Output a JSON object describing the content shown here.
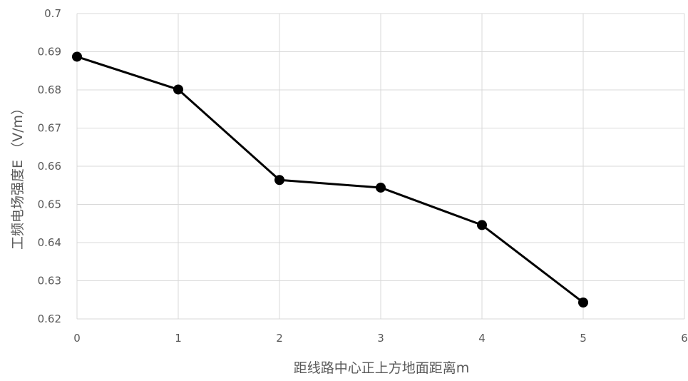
{
  "chart_data": {
    "type": "line",
    "title": "",
    "xlabel": "距线路中心正上方地面距离m",
    "ylabel": "工频电场强度E （V/m）",
    "xlim": [
      0,
      6
    ],
    "ylim": [
      0.62,
      0.7
    ],
    "x_ticks": [
      "0",
      "1",
      "2",
      "3",
      "4",
      "5",
      "6"
    ],
    "y_ticks": [
      "0.62",
      "0.63",
      "0.64",
      "0.65",
      "0.66",
      "0.67",
      "0.68",
      "0.69",
      "0.7"
    ],
    "grid": true,
    "legend": "none",
    "series": [
      {
        "x": [
          0,
          1,
          2,
          3,
          4,
          5
        ],
        "values": [
          0.6887,
          0.6801,
          0.6564,
          0.6544,
          0.6446,
          0.6243
        ],
        "color": "#000000",
        "marker": "circle"
      }
    ]
  }
}
